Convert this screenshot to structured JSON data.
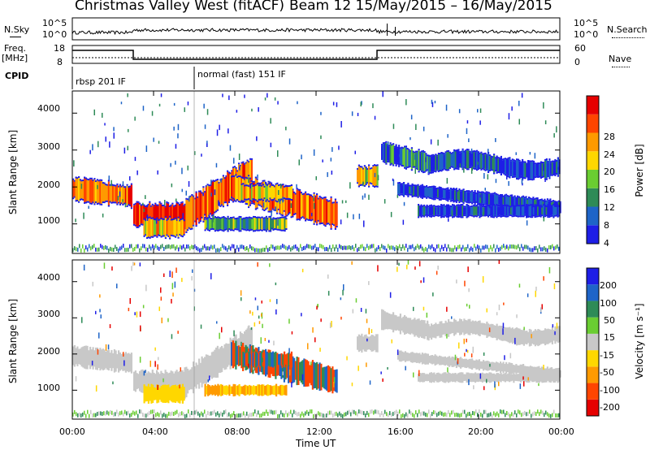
{
  "header": {
    "title": "Christmas Valley West (fitACF)",
    "beam_date": "Beam 12 15/May/2015 – 16/May/2015"
  },
  "summary_panels": {
    "nsky_label": "N.Sky",
    "nsearch_label": "N.Search",
    "nsky_ticks": [
      "10^5",
      "10^0"
    ],
    "nsearch_ticks": [
      "10^5",
      "10^0"
    ],
    "freq_label_line1": "Freq.",
    "freq_label_line2": "[MHz]",
    "freq_ticks": [
      "18",
      "8"
    ],
    "nave_label": "Nave",
    "nave_ticks": [
      "60",
      "0"
    ],
    "cpid_label": "CPID",
    "cpid_segments": [
      {
        "text": "rbsp 201 IF",
        "start_hour": 0
      },
      {
        "text": "normal (fast) 151 IF",
        "start_hour": 6
      }
    ]
  },
  "chart_data": [
    {
      "type": "heatmap",
      "panel": "power",
      "ylabel": "Slant Range [km]",
      "yticks": [
        1000,
        2000,
        3000,
        4000
      ],
      "ylim": [
        200,
        4600
      ],
      "xlim_hours": [
        0,
        24
      ],
      "colorbar_label": "Power [dB]",
      "colorbar_ticks": [
        "4",
        "8",
        "12",
        "16",
        "20",
        "24",
        "28"
      ],
      "colors": [
        "#1e1ee6",
        "#1e64c8",
        "#2e8b57",
        "#6acd32",
        "#ffd700",
        "#ff9a00",
        "#ff4500",
        "#e60000"
      ]
    },
    {
      "type": "heatmap",
      "panel": "velocity",
      "ylabel": "Slant Range [km]",
      "yticks": [
        1000,
        2000,
        3000,
        4000
      ],
      "ylim": [
        200,
        4600
      ],
      "xlim_hours": [
        0,
        24
      ],
      "colorbar_label": "Velocity [m s⁻¹]",
      "colorbar_ticks": [
        "200",
        "100",
        "50",
        "15",
        "-15",
        "-50",
        "-100",
        "-200"
      ],
      "colors": [
        "#1e1ee6",
        "#1e64c8",
        "#2e8b57",
        "#6acd32",
        "#c8c8c8",
        "#ffd700",
        "#ff9a00",
        "#ff4500",
        "#e60000"
      ]
    }
  ],
  "xaxis": {
    "ticks": [
      "00:00",
      "04:00",
      "08:00",
      "12:00",
      "16:00",
      "20:00",
      "00:00"
    ],
    "label": "Time UT"
  }
}
